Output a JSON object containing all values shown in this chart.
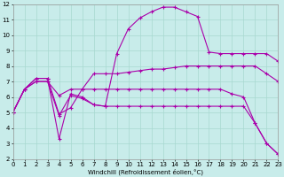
{
  "bg_color": "#c8ecea",
  "grid_color": "#a8d8d0",
  "line_color": "#aa00aa",
  "xlim": [
    0,
    23
  ],
  "ylim": [
    2,
    12
  ],
  "xticks": [
    0,
    1,
    2,
    3,
    4,
    5,
    6,
    7,
    8,
    9,
    10,
    11,
    12,
    13,
    14,
    15,
    16,
    17,
    18,
    19,
    20,
    21,
    22,
    23
  ],
  "yticks": [
    2,
    3,
    4,
    5,
    6,
    7,
    8,
    9,
    10,
    11,
    12
  ],
  "xlabel": "Windchill (Refroidissement éolien,°C)",
  "lines": [
    {
      "x": [
        0,
        1,
        2,
        3,
        4,
        5,
        6,
        7,
        8,
        9,
        10,
        11,
        12,
        13,
        14,
        15,
        16,
        17,
        18,
        19,
        20,
        21,
        22,
        23
      ],
      "y": [
        5.0,
        6.5,
        7.2,
        7.2,
        3.3,
        6.2,
        6.0,
        5.5,
        5.4,
        8.8,
        10.4,
        11.1,
        11.5,
        11.8,
        11.8,
        11.5,
        11.2,
        8.9,
        8.8,
        8.8,
        8.8,
        8.8,
        8.8,
        8.3
      ]
    },
    {
      "x": [
        0,
        1,
        2,
        3,
        4,
        5,
        6,
        7,
        8,
        9,
        10,
        11,
        12,
        13,
        14,
        15,
        16,
        17,
        18,
        19,
        20,
        21,
        22,
        23
      ],
      "y": [
        5.0,
        6.5,
        7.2,
        7.2,
        4.9,
        5.3,
        6.5,
        7.5,
        7.5,
        7.5,
        7.6,
        7.7,
        7.8,
        7.8,
        7.9,
        8.0,
        8.0,
        8.0,
        8.0,
        8.0,
        8.0,
        8.0,
        7.5,
        7.0
      ]
    },
    {
      "x": [
        0,
        1,
        2,
        3,
        4,
        5,
        6,
        7,
        8,
        9,
        10,
        11,
        12,
        13,
        14,
        15,
        16,
        17,
        18,
        19,
        20,
        21,
        22,
        23
      ],
      "y": [
        5.0,
        6.5,
        7.0,
        7.0,
        6.1,
        6.5,
        6.5,
        6.5,
        6.5,
        6.5,
        6.5,
        6.5,
        6.5,
        6.5,
        6.5,
        6.5,
        6.5,
        6.5,
        6.5,
        6.2,
        6.0,
        4.3,
        3.0,
        2.3
      ]
    },
    {
      "x": [
        0,
        1,
        2,
        3,
        4,
        5,
        6,
        7,
        8,
        9,
        10,
        11,
        12,
        13,
        14,
        15,
        16,
        17,
        18,
        19,
        20,
        21,
        22,
        23
      ],
      "y": [
        5.0,
        6.5,
        7.0,
        7.0,
        4.8,
        6.1,
        5.9,
        5.5,
        5.4,
        5.4,
        5.4,
        5.4,
        5.4,
        5.4,
        5.4,
        5.4,
        5.4,
        5.4,
        5.4,
        5.4,
        5.4,
        4.3,
        3.0,
        2.3
      ]
    }
  ]
}
